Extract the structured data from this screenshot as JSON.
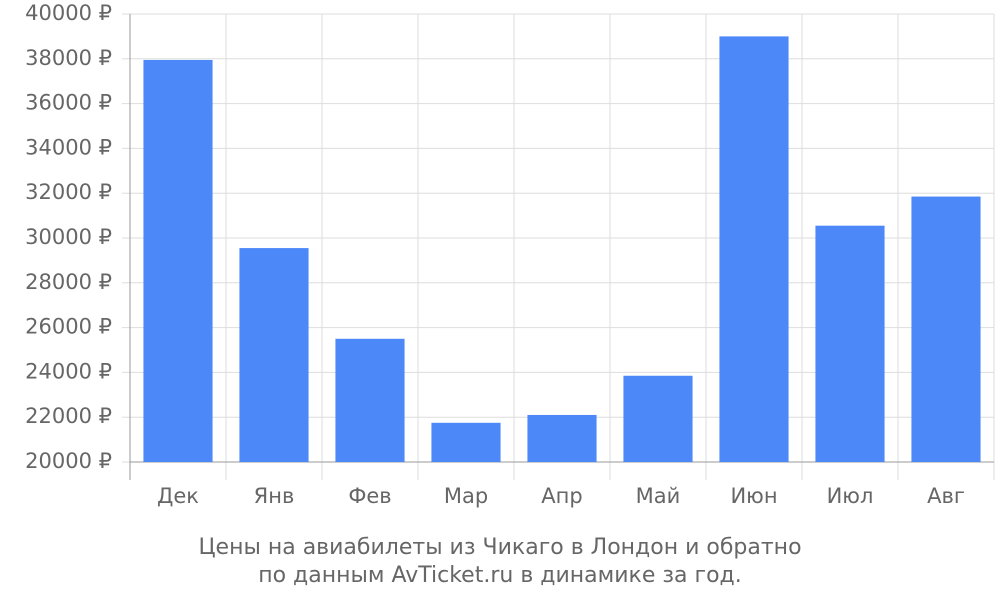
{
  "chart_data": {
    "type": "bar",
    "caption": [
      "Цены на авиабилеты из Чикаго в Лондон и обратно",
      "по данным AvTicket.ru в динамике за год."
    ],
    "categories": [
      "Дек",
      "Янв",
      "Фев",
      "Мар",
      "Апр",
      "Май",
      "Июн",
      "Июл",
      "Авг"
    ],
    "values": [
      37950,
      29550,
      25500,
      21750,
      22100,
      23850,
      39000,
      30550,
      31850
    ],
    "color": "#4d88f9",
    "ylim": [
      20000,
      40000
    ],
    "yticks": [
      {
        "value": 20000,
        "label": "20000 ₽"
      },
      {
        "value": 22000,
        "label": "22000 ₽"
      },
      {
        "value": 24000,
        "label": "24000 ₽"
      },
      {
        "value": 26000,
        "label": "26000 ₽"
      },
      {
        "value": 28000,
        "label": "28000 ₽"
      },
      {
        "value": 30000,
        "label": "30000 ₽"
      },
      {
        "value": 32000,
        "label": "32000 ₽"
      },
      {
        "value": 34000,
        "label": "34000 ₽"
      },
      {
        "value": 36000,
        "label": "36000 ₽"
      },
      {
        "value": 38000,
        "label": "38000 ₽"
      },
      {
        "value": 40000,
        "label": "40000 ₽"
      }
    ],
    "grid": true
  }
}
